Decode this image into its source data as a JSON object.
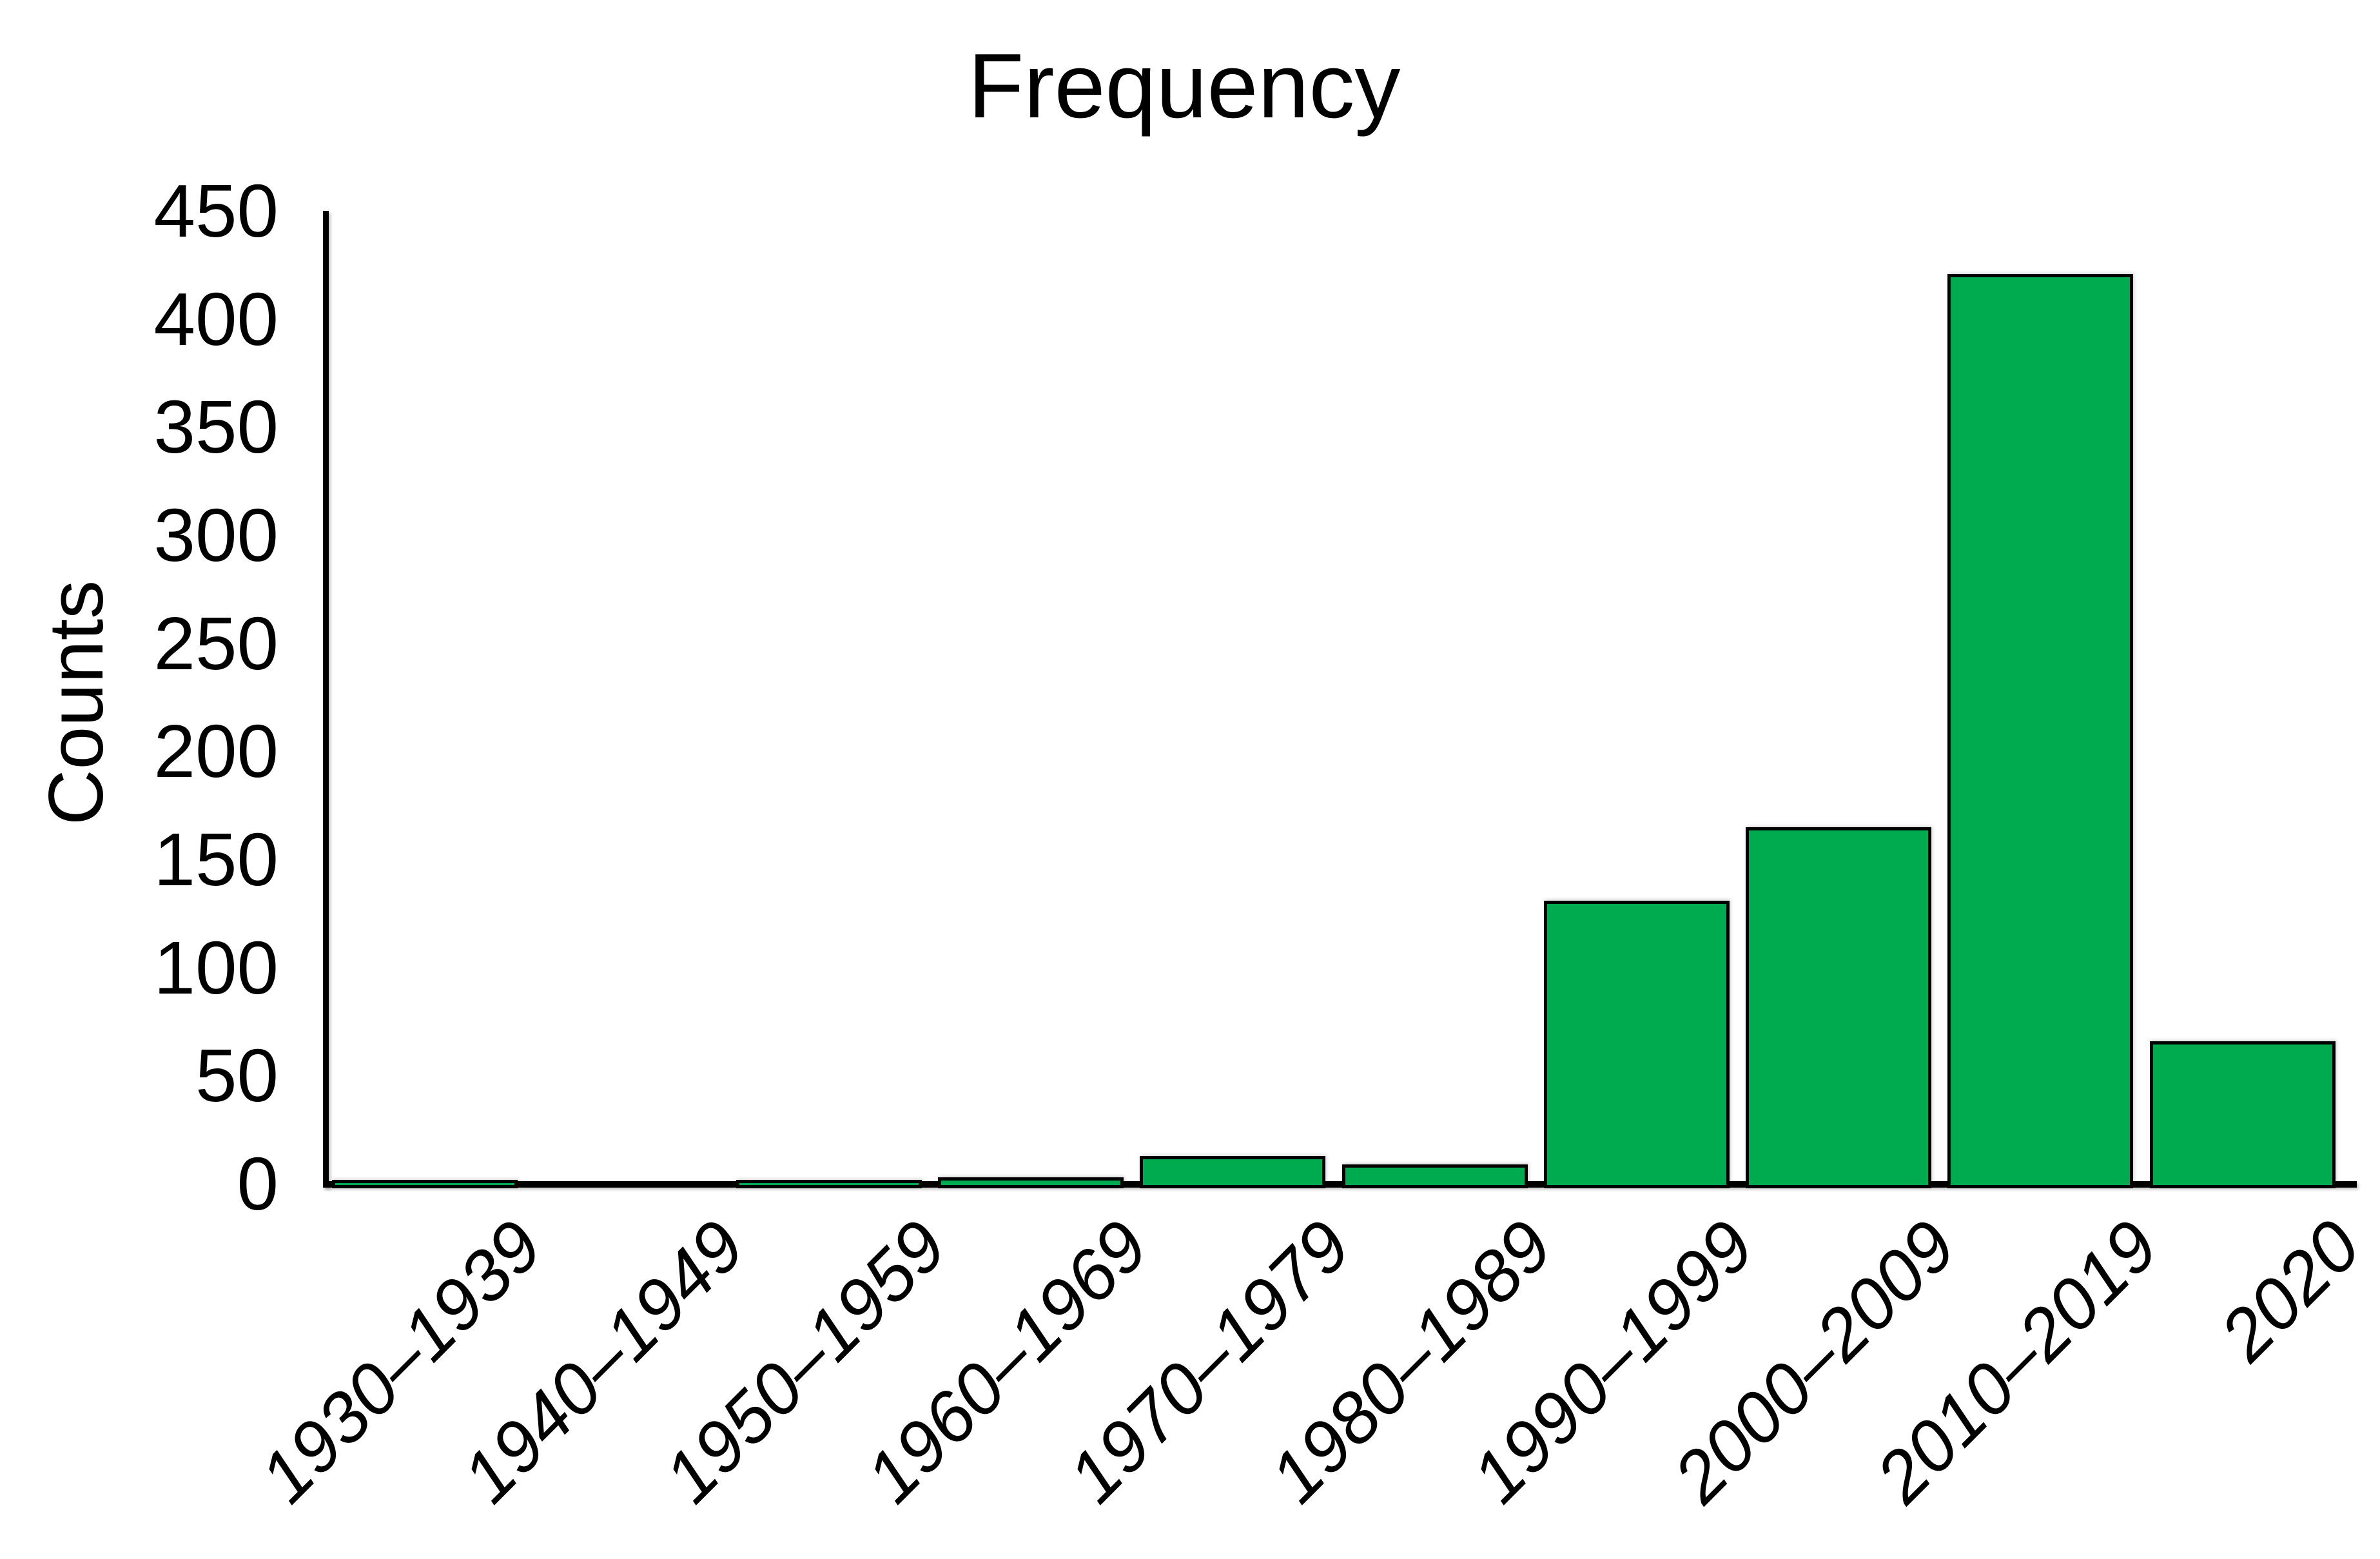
{
  "title": "Frequency",
  "y_axis": {
    "label": "Counts",
    "ticks": [
      0,
      50,
      100,
      150,
      200,
      250,
      300,
      350,
      400,
      450
    ]
  },
  "chart_data": {
    "type": "bar",
    "title": "Frequency",
    "xlabel": "",
    "ylabel": "Counts",
    "categories": [
      "1930–1939",
      "1940–1949",
      "1950–1959",
      "1960–1969",
      "1970–1979",
      "1980–1989",
      "1990–1999",
      "2000–2009",
      "2010–2019",
      "2020"
    ],
    "values": [
      1,
      0,
      1,
      2,
      12,
      8,
      130,
      164,
      420,
      65
    ],
    "ylim": [
      0,
      450
    ],
    "y_tick_step": 50,
    "grid": false,
    "legend_position": "none",
    "bar_fill_color": "#00AB50",
    "bar_border_color": "#000000",
    "axis_color": "#000000",
    "text_color": "#000000",
    "background_color": "#FFFFFF"
  }
}
